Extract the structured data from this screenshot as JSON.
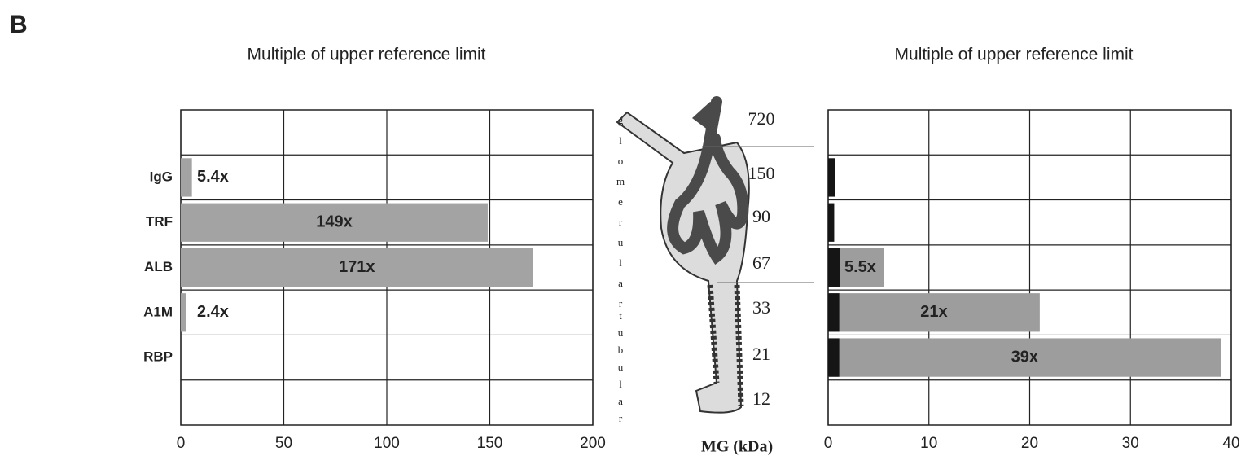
{
  "panel_label": "B",
  "chart_data": [
    {
      "type": "bar",
      "orientation": "horizontal",
      "title": "Multiple of upper reference limit",
      "categories": [
        null,
        "IgG",
        "TRF",
        "ALB",
        "A1M",
        "RBP",
        null
      ],
      "values": [
        null,
        5.4,
        149,
        171,
        2.4,
        null,
        null
      ],
      "value_labels": [
        null,
        "5.4x",
        "149x",
        "171x",
        "2.4x",
        null,
        null
      ],
      "color": "#a3a3a3",
      "xlim": [
        0,
        200
      ],
      "xticks": [
        0,
        50,
        100,
        150,
        200
      ],
      "grid": true
    },
    {
      "type": "bar",
      "orientation": "horizontal",
      "title": "Multiple of upper reference limit",
      "categories": [
        null,
        null,
        null,
        null,
        null,
        null,
        null
      ],
      "series": [
        {
          "color": "#9d9d9d",
          "values": [
            null,
            null,
            null,
            5.5,
            21,
            39,
            null
          ],
          "value_labels": [
            null,
            null,
            null,
            "5.5x",
            "21x",
            "39x",
            null
          ]
        },
        {
          "color": "#151515",
          "values": [
            null,
            0.7,
            0.6,
            1.2,
            1.1,
            1.1,
            null
          ]
        }
      ],
      "xlim": [
        0,
        40
      ],
      "xticks": [
        0,
        10,
        20,
        30,
        40
      ],
      "grid": true
    }
  ],
  "diagram": {
    "labels": [
      "glomerular",
      "tubular"
    ],
    "weights": [
      720,
      150,
      90,
      67,
      33,
      21,
      12
    ],
    "axis_label": "MG (kDa)"
  }
}
